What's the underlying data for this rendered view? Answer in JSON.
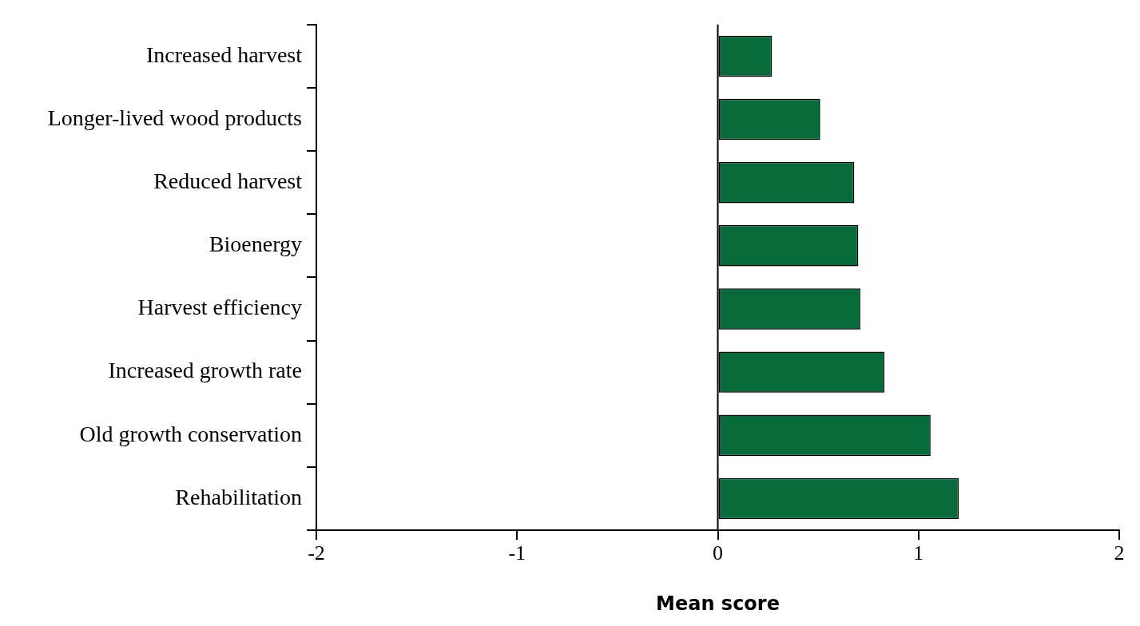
{
  "chart_data": {
    "type": "bar",
    "orientation": "horizontal",
    "xlabel": "Mean score",
    "categories": [
      "Increased harvest",
      "Longer-lived wood products",
      "Reduced harvest",
      "Bioenergy",
      "Harvest efficiency",
      "Increased growth rate",
      "Old growth conservation",
      "Rehabilitation"
    ],
    "values": [
      0.27,
      0.51,
      0.68,
      0.7,
      0.71,
      0.83,
      1.06,
      1.2
    ],
    "color": "#08693a",
    "xlim": [
      -2,
      2
    ],
    "xticks": [
      -2,
      -1,
      0,
      1,
      2
    ],
    "ref_lines": [
      {
        "axis": "x",
        "value": 0,
        "color": "#000000"
      }
    ],
    "grid": false,
    "legend": false
  }
}
